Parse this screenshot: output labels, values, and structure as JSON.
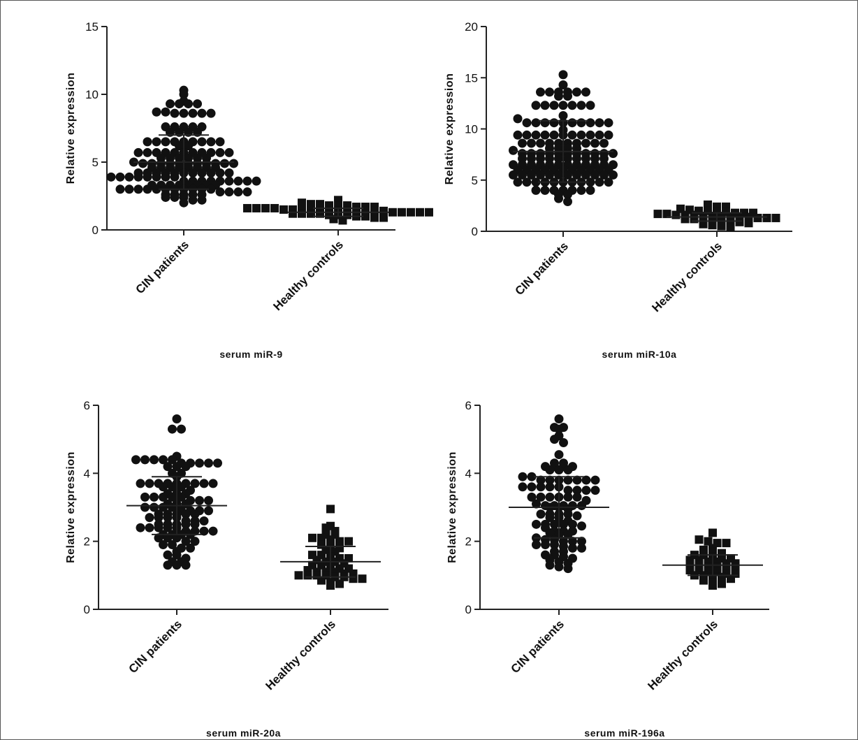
{
  "chart_data": [
    {
      "type": "scatter",
      "title": "",
      "xlabel": "serum miR-9",
      "ylabel": "Relative expression",
      "categories": [
        "CIN patients",
        "Healthy controls"
      ],
      "ylim": [
        0,
        15
      ],
      "yticks": [
        0,
        5,
        10,
        15
      ],
      "series": [
        {
          "category": "CIN patients",
          "marker": "circle",
          "mean": 5.0,
          "sd": 2.0,
          "values": [
            10.3,
            10.0,
            9.5,
            9.3,
            9.3,
            9.3,
            9.3,
            8.7,
            8.7,
            8.6,
            8.6,
            8.6,
            8.6,
            8.6,
            7.6,
            7.6,
            7.6,
            7.6,
            7.6,
            7.2,
            7.2,
            7.2,
            7.2,
            6.5,
            6.5,
            6.5,
            6.5,
            6.5,
            6.5,
            6.5,
            6.5,
            6.5,
            6.2,
            6.2,
            5.7,
            5.7,
            5.7,
            5.7,
            5.7,
            5.7,
            5.7,
            5.7,
            5.7,
            5.7,
            5.7,
            5.3,
            5.3,
            5.3,
            5.3,
            5.3,
            5.3,
            5.0,
            4.9,
            4.9,
            4.9,
            4.9,
            4.9,
            4.9,
            4.9,
            4.9,
            4.9,
            4.9,
            4.9,
            4.6,
            4.6,
            4.6,
            4.6,
            4.6,
            4.6,
            4.6,
            4.6,
            4.2,
            4.2,
            4.2,
            4.2,
            4.2,
            4.2,
            4.2,
            4.2,
            4.2,
            4.2,
            4.2,
            3.9,
            3.9,
            3.9,
            3.9,
            3.9,
            3.9,
            3.9,
            3.9,
            3.6,
            3.6,
            3.6,
            3.6,
            3.6,
            3.6,
            3.6,
            3.6,
            3.6,
            3.3,
            3.3,
            3.3,
            3.3,
            3.3,
            3.3,
            3.3,
            3.3,
            3.0,
            3.0,
            3.0,
            3.0,
            3.0,
            3.0,
            3.0,
            3.0,
            3.0,
            3.0,
            3.0,
            2.8,
            2.8,
            2.8,
            2.8,
            2.6,
            2.6,
            2.6,
            2.6,
            2.6,
            2.4,
            2.4,
            2.4,
            2.2,
            2.2,
            2.0
          ]
        },
        {
          "category": "Healthy controls",
          "marker": "square",
          "mean": 1.3,
          "sd": 0.3,
          "values": [
            2.2,
            2.0,
            1.9,
            1.9,
            1.8,
            1.8,
            1.8,
            1.7,
            1.7,
            1.7,
            1.6,
            1.6,
            1.6,
            1.6,
            1.5,
            1.5,
            1.5,
            1.5,
            1.5,
            1.5,
            1.4,
            1.4,
            1.4,
            1.4,
            1.4,
            1.4,
            1.3,
            1.3,
            1.3,
            1.3,
            1.3,
            1.2,
            1.2,
            1.2,
            1.2,
            1.1,
            1.1,
            1.1,
            1.0,
            1.0,
            0.9,
            0.9,
            0.8,
            0.7
          ]
        }
      ]
    },
    {
      "type": "scatter",
      "title": "",
      "xlabel": "serum miR-10a",
      "ylabel": "Relative expression",
      "categories": [
        "CIN patients",
        "Healthy controls"
      ],
      "ylim": [
        0,
        20
      ],
      "yticks": [
        0,
        5,
        10,
        15,
        20
      ],
      "series": [
        {
          "category": "CIN patients",
          "marker": "circle",
          "mean": 7.8,
          "sd": 3.0,
          "values": [
            15.3,
            14.3,
            13.6,
            13.6,
            13.6,
            13.6,
            13.6,
            13.6,
            13.2,
            13.2,
            12.3,
            12.3,
            12.3,
            12.3,
            12.3,
            12.3,
            12.3,
            11.3,
            11.0,
            10.6,
            10.6,
            10.6,
            10.6,
            10.6,
            10.6,
            10.6,
            10.6,
            10.6,
            10.6,
            9.9,
            9.4,
            9.4,
            9.4,
            9.4,
            9.4,
            9.4,
            9.4,
            9.4,
            9.4,
            9.4,
            9.4,
            8.6,
            8.6,
            8.6,
            8.6,
            8.6,
            8.6,
            8.6,
            8.6,
            8.6,
            8.6,
            8.1,
            8.1,
            8.1,
            8.1,
            7.9,
            7.6,
            7.6,
            7.6,
            7.6,
            7.6,
            7.6,
            7.6,
            7.6,
            7.6,
            7.6,
            7.6,
            7.1,
            7.1,
            7.1,
            7.1,
            7.1,
            7.1,
            7.1,
            7.1,
            7.1,
            7.1,
            6.5,
            6.5,
            6.5,
            6.5,
            6.5,
            6.5,
            6.5,
            6.5,
            6.5,
            6.5,
            6.5,
            6.5,
            6.0,
            6.0,
            6.0,
            6.0,
            6.0,
            6.0,
            6.0,
            6.0,
            6.0,
            6.0,
            6.0,
            5.5,
            5.5,
            5.5,
            5.5,
            5.5,
            5.5,
            5.5,
            5.5,
            5.5,
            5.5,
            5.5,
            5.5,
            4.8,
            4.8,
            4.8,
            4.8,
            4.8,
            4.8,
            4.8,
            4.8,
            4.8,
            4.8,
            4.8,
            4.0,
            4.0,
            4.0,
            4.0,
            4.0,
            4.0,
            4.0,
            3.6,
            3.6,
            3.2,
            2.9
          ]
        },
        {
          "category": "Healthy controls",
          "marker": "square",
          "mean": 1.4,
          "sd": 0.4,
          "values": [
            2.6,
            2.4,
            2.4,
            2.2,
            2.1,
            2.0,
            2.0,
            1.9,
            1.9,
            1.8,
            1.8,
            1.8,
            1.7,
            1.7,
            1.6,
            1.6,
            1.6,
            1.5,
            1.5,
            1.5,
            1.4,
            1.4,
            1.4,
            1.3,
            1.3,
            1.3,
            1.2,
            1.2,
            1.1,
            1.1,
            1.0,
            1.0,
            0.9,
            0.8,
            0.7,
            0.6,
            0.5,
            0.4
          ]
        }
      ]
    },
    {
      "type": "scatter",
      "title": "",
      "xlabel": "serum miR-20a",
      "ylabel": "Relative expression",
      "categories": [
        "CIN patients",
        "Healthy controls"
      ],
      "ylim": [
        0,
        6
      ],
      "yticks": [
        0,
        2,
        4,
        6
      ],
      "series": [
        {
          "category": "CIN patients",
          "marker": "circle",
          "mean": 3.05,
          "sd": 0.85,
          "values": [
            5.6,
            5.3,
            5.3,
            4.5,
            4.4,
            4.4,
            4.4,
            4.4,
            4.4,
            4.3,
            4.3,
            4.3,
            4.3,
            4.3,
            4.2,
            4.2,
            4.2,
            4.0,
            4.0,
            3.9,
            3.7,
            3.7,
            3.7,
            3.7,
            3.7,
            3.7,
            3.7,
            3.7,
            3.7,
            3.6,
            3.6,
            3.6,
            3.5,
            3.4,
            3.4,
            3.4,
            3.3,
            3.3,
            3.3,
            3.3,
            3.3,
            3.2,
            3.2,
            3.2,
            3.1,
            3.1,
            3.1,
            3.0,
            3.0,
            3.0,
            3.0,
            2.9,
            2.9,
            2.9,
            2.9,
            2.8,
            2.8,
            2.8,
            2.8,
            2.8,
            2.7,
            2.7,
            2.7,
            2.7,
            2.6,
            2.6,
            2.6,
            2.5,
            2.5,
            2.5,
            2.5,
            2.5,
            2.4,
            2.4,
            2.4,
            2.4,
            2.4,
            2.3,
            2.3,
            2.3,
            2.3,
            2.2,
            2.2,
            2.2,
            2.2,
            2.1,
            2.1,
            2.1,
            2.0,
            2.0,
            1.9,
            1.9,
            1.8,
            1.8,
            1.7,
            1.6,
            1.6,
            1.5,
            1.4,
            1.4,
            1.3,
            1.3,
            1.3
          ]
        },
        {
          "category": "Healthy controls",
          "marker": "square",
          "mean": 1.4,
          "sd": 0.45,
          "values": [
            2.95,
            2.45,
            2.4,
            2.3,
            2.2,
            2.2,
            2.1,
            2.1,
            2.05,
            2.0,
            2.0,
            1.9,
            1.85,
            1.8,
            1.75,
            1.7,
            1.6,
            1.6,
            1.55,
            1.5,
            1.5,
            1.45,
            1.4,
            1.4,
            1.35,
            1.3,
            1.3,
            1.25,
            1.2,
            1.2,
            1.15,
            1.1,
            1.1,
            1.1,
            1.05,
            1.05,
            1.0,
            1.0,
            1.0,
            1.0,
            0.95,
            0.95,
            0.9,
            0.9,
            0.85,
            0.8,
            0.75,
            0.7
          ]
        }
      ]
    },
    {
      "type": "scatter",
      "title": "",
      "xlabel": "serum miR-196a",
      "ylabel": "Relative expression",
      "categories": [
        "CIN patients",
        "Healthy controls"
      ],
      "ylim": [
        0,
        6
      ],
      "yticks": [
        0,
        2,
        4,
        6
      ],
      "series": [
        {
          "category": "CIN patients",
          "marker": "circle",
          "mean": 3.0,
          "sd": 0.9,
          "values": [
            5.6,
            5.35,
            5.35,
            5.3,
            5.1,
            5.0,
            4.9,
            4.55,
            4.3,
            4.3,
            4.2,
            4.2,
            4.2,
            4.2,
            4.1,
            4.1,
            4.1,
            3.9,
            3.9,
            3.8,
            3.8,
            3.8,
            3.8,
            3.8,
            3.8,
            3.8,
            3.6,
            3.6,
            3.6,
            3.6,
            3.6,
            3.5,
            3.5,
            3.5,
            3.5,
            3.3,
            3.3,
            3.3,
            3.3,
            3.3,
            3.3,
            3.2,
            3.1,
            3.05,
            3.05,
            3.05,
            3.05,
            3.05,
            3.0,
            3.0,
            2.95,
            2.8,
            2.8,
            2.8,
            2.8,
            2.75,
            2.7,
            2.7,
            2.6,
            2.5,
            2.5,
            2.5,
            2.5,
            2.5,
            2.45,
            2.4,
            2.3,
            2.3,
            2.3,
            2.25,
            2.2,
            2.2,
            2.1,
            2.05,
            2.05,
            2.0,
            2.0,
            2.0,
            1.9,
            1.9,
            1.9,
            1.85,
            1.8,
            1.8,
            1.7,
            1.7,
            1.6,
            1.6,
            1.55,
            1.5,
            1.45,
            1.4,
            1.35,
            1.3,
            1.25,
            1.2
          ]
        },
        {
          "category": "Healthy controls",
          "marker": "square",
          "mean": 1.3,
          "sd": 0.3,
          "values": [
            2.25,
            2.05,
            2.0,
            1.95,
            1.95,
            1.8,
            1.75,
            1.7,
            1.65,
            1.6,
            1.6,
            1.55,
            1.5,
            1.5,
            1.45,
            1.45,
            1.4,
            1.4,
            1.35,
            1.35,
            1.3,
            1.3,
            1.25,
            1.25,
            1.2,
            1.2,
            1.15,
            1.15,
            1.1,
            1.1,
            1.05,
            1.05,
            1.0,
            1.0,
            0.95,
            0.95,
            0.9,
            0.85,
            0.8,
            0.75,
            0.7
          ]
        }
      ]
    }
  ]
}
